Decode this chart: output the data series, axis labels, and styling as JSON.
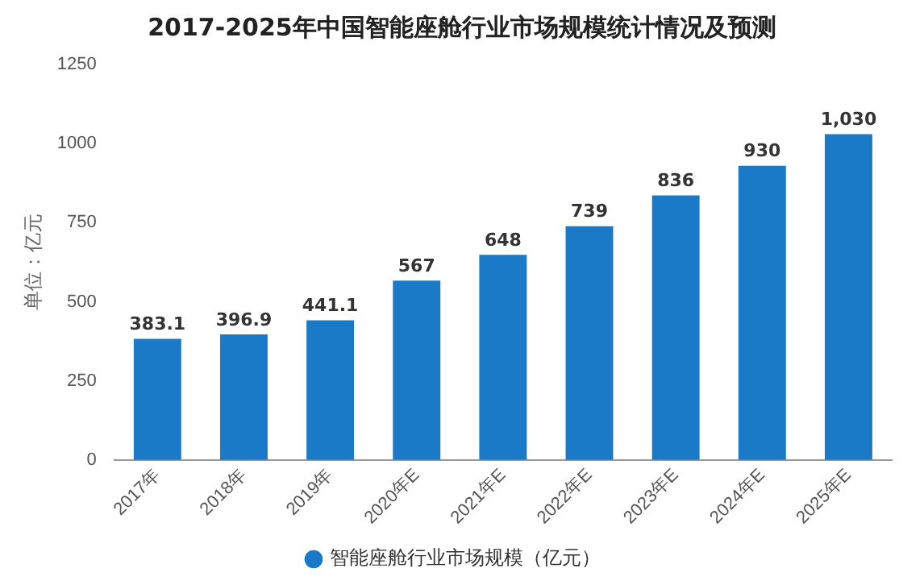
{
  "chart_data": {
    "type": "bar",
    "title": "2017-2025年中国智能座舱行业市场规模统计情况及预测",
    "ylabel": "单位：亿元",
    "categories": [
      "2017年",
      "2018年",
      "2019年",
      "2020年E",
      "2021年E",
      "2022年E",
      "2023年E",
      "2024年E",
      "2025年E"
    ],
    "series": [
      {
        "name": "智能座舱行业市场规模（亿元）",
        "color": "#1a7ac8",
        "values": [
          383.1,
          396.9,
          441.1,
          567,
          648,
          739,
          836,
          930,
          1030
        ],
        "value_labels": [
          "383.1",
          "396.9",
          "441.1",
          "567",
          "648",
          "739",
          "836",
          "930",
          "1,030"
        ]
      }
    ],
    "ylim": [
      0,
      1250
    ],
    "yticks": [
      0,
      250,
      500,
      750,
      1000,
      1250
    ],
    "grid": false,
    "legend": "bottom"
  }
}
